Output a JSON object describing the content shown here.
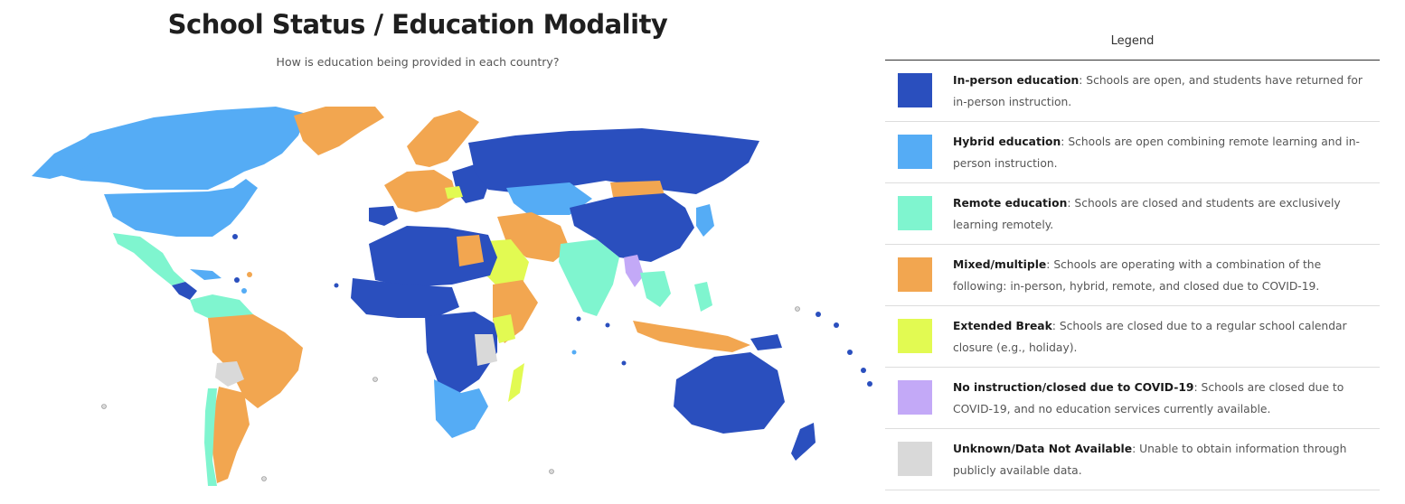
{
  "header": {
    "title": "School Status / Education Modality",
    "subtitle": "How is education being provided in each country?"
  },
  "legend": {
    "title": "Legend",
    "items": [
      {
        "label": "In-person education",
        "desc": ": Schools are open, and students have returned for in-person instruction.",
        "color": "#2A4FBE"
      },
      {
        "label": "Hybrid education",
        "desc": ": Schools are open combining remote learning and in-person instruction.",
        "color": "#55ACF5"
      },
      {
        "label": "Remote education",
        "desc": ": Schools are closed and students are exclusively learning remotely.",
        "color": "#7FF5CF"
      },
      {
        "label": "Mixed/multiple",
        "desc": ": Schools are operating with a combination of the following: in-person, hybrid, remote, and closed due to COVID-19.",
        "color": "#F2A650"
      },
      {
        "label": "Extended Break",
        "desc": ": Schools are closed due to a regular school calendar closure (e.g., holiday).",
        "color": "#E2FA52"
      },
      {
        "label": "No instruction/closed due to COVID-19",
        "desc": ": Schools are closed due to COVID-19, and no education services currently available.",
        "color": "#C3A9F7"
      },
      {
        "label": "Unknown/Data Not Available",
        "desc": ": Unable to obtain information through publicly available data.",
        "color": "#D9D9D9"
      }
    ]
  },
  "map": {
    "colors": {
      "in_person": "#2A4FBE",
      "hybrid": "#55ACF5",
      "remote": "#7FF5CF",
      "mixed": "#F2A650",
      "extended_break": "#E2FA52",
      "no_instruction": "#C3A9F7",
      "unknown": "#D9D9D9"
    }
  }
}
